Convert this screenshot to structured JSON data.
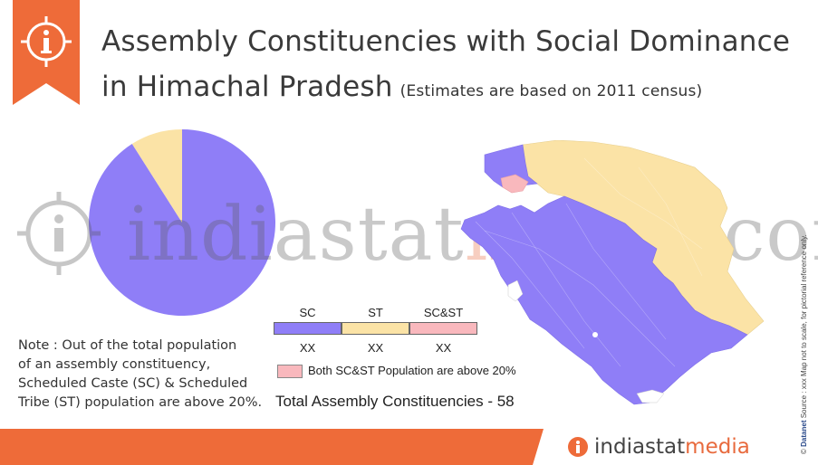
{
  "header": {
    "title_line1": "Assembly Constituencies with Social Dominance",
    "title_line2": "in Himachal Pradesh",
    "title_note": "(Estimates are based on 2011 census)",
    "icon": "info-icon"
  },
  "pie": {
    "slices": [
      {
        "label": "SC",
        "fraction": 0.91,
        "color": "#8f7ef7"
      },
      {
        "label": "ST",
        "fraction": 0.09,
        "color": "#fbe3a6"
      }
    ]
  },
  "watermark": {
    "part1": "indiastat",
    "part2": "media",
    "part3": ".com"
  },
  "legend": {
    "items": [
      {
        "label": "SC",
        "value": "XX",
        "color": "#8f7ef7"
      },
      {
        "label": "ST",
        "value": "XX",
        "color": "#fbe3a6"
      },
      {
        "label": "SC&ST",
        "value": "XX",
        "color": "#f9b8bd"
      }
    ],
    "both_label": "Both SC&ST Population are above 20%",
    "total_label": "Total Assembly Constituencies - 58"
  },
  "note": {
    "line1": "Note : Out of the total population",
    "line2": "of an assembly constituency,",
    "line3": "Scheduled Caste (SC) & Scheduled",
    "line4": "Tribe (ST) population are above  20%."
  },
  "footer": {
    "brand_part1": "indiastat",
    "brand_part2": "media",
    "accent_color": "#ee6b39"
  },
  "side_note": {
    "copyright": "©",
    "brand": "Datanet",
    "text": "Source : xxx  Map not to scale, for pictorial reference only."
  }
}
